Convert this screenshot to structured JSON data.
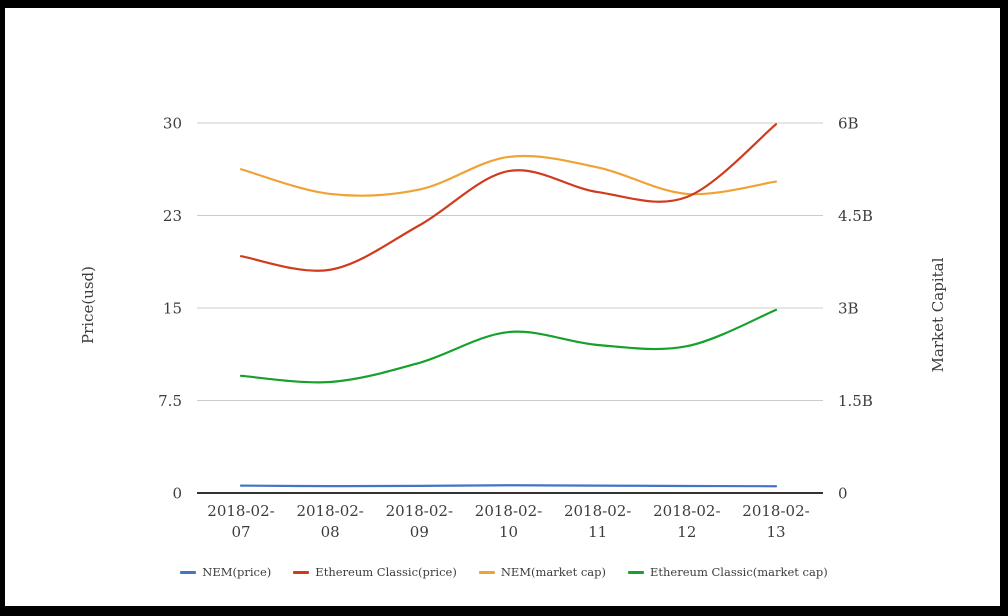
{
  "chart_data": {
    "type": "line",
    "x": [
      "2018-02-07",
      "2018-02-08",
      "2018-02-09",
      "2018-02-10",
      "2018-02-11",
      "2018-02-12",
      "2018-02-13"
    ],
    "axes": {
      "price": {
        "title": "Price(usd)",
        "side": "left",
        "min": 0,
        "max": 30,
        "ticks": [
          0,
          7.5,
          15,
          22.5,
          30
        ],
        "tick_labels": [
          "0",
          "7.5",
          "15",
          "23",
          "30"
        ]
      },
      "market_cap": {
        "title": "Market Capital",
        "side": "right",
        "min": 0,
        "max": 6,
        "unit": "billions",
        "ticks": [
          0,
          1.5,
          3,
          4.5,
          6
        ],
        "tick_labels": [
          "0",
          "1.5B",
          "3B",
          "4.5B",
          "6B"
        ]
      }
    },
    "series": [
      {
        "name": "NEM(price)",
        "axis": "price",
        "color": "#4374c9",
        "values": [
          0.6,
          0.56,
          0.58,
          0.63,
          0.6,
          0.57,
          0.55
        ]
      },
      {
        "name": "Ethereum Classic(price)",
        "axis": "price",
        "color": "#d03b1d",
        "values": [
          19.2,
          18.1,
          21.7,
          26.1,
          24.4,
          24.0,
          29.9
        ]
      },
      {
        "name": "NEM(market cap)",
        "axis": "market_cap",
        "color": "#f0a236",
        "values": [
          5.25,
          4.85,
          4.92,
          5.45,
          5.28,
          4.85,
          5.05
        ]
      },
      {
        "name": "Ethereum Classic(market cap)",
        "axis": "market_cap",
        "color": "#18a02c",
        "values": [
          1.9,
          1.8,
          2.11,
          2.61,
          2.4,
          2.38,
          2.97
        ]
      }
    ],
    "grid": true,
    "legend_position": "bottom",
    "smooth": true
  },
  "styles": {
    "background": "#ffffff",
    "frame_color": "#000000",
    "grid_color": "#cccccc",
    "axis_line_color": "#333333",
    "text_color": "#3d3d3d"
  }
}
